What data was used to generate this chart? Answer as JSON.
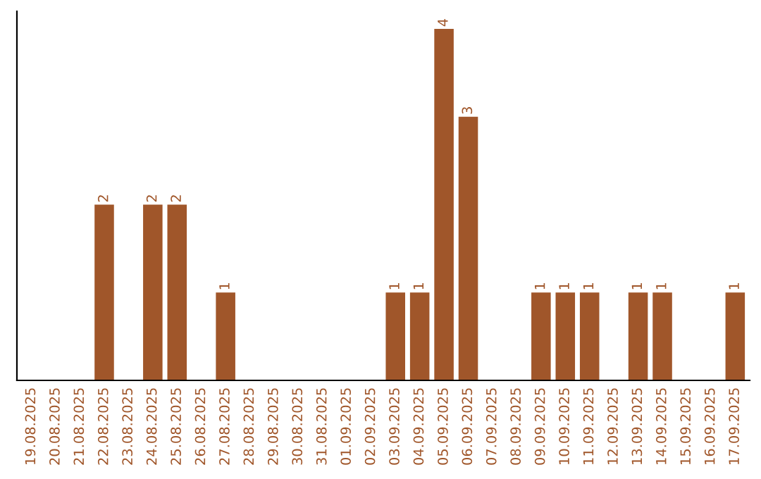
{
  "chart_data": {
    "type": "bar",
    "categories": [
      "19.08.2025",
      "20.08.2025",
      "21.08.2025",
      "22.08.2025",
      "23.08.2025",
      "24.08.2025",
      "25.08.2025",
      "26.08.2025",
      "27.08.2025",
      "28.08.2025",
      "29.08.2025",
      "30.08.2025",
      "31.08.2025",
      "01.09.2025",
      "02.09.2025",
      "03.09.2025",
      "04.09.2025",
      "05.09.2025",
      "06.09.2025",
      "07.09.2025",
      "08.09.2025",
      "09.09.2025",
      "10.09.2025",
      "11.09.2025",
      "12.09.2025",
      "13.09.2025",
      "14.09.2025",
      "15.09.2025",
      "16.09.2025",
      "17.09.2025"
    ],
    "values": [
      0,
      0,
      0,
      2,
      0,
      2,
      2,
      0,
      1,
      0,
      0,
      0,
      0,
      0,
      0,
      1,
      1,
      4,
      3,
      0,
      0,
      1,
      1,
      1,
      0,
      1,
      1,
      0,
      0,
      1
    ],
    "value_labels": [
      null,
      null,
      null,
      "2",
      null,
      "2",
      "2",
      null,
      "1",
      null,
      null,
      null,
      null,
      null,
      null,
      "1",
      "1",
      "4",
      "3",
      null,
      null,
      "1",
      "1",
      "1",
      null,
      "1",
      "1",
      null,
      null,
      "1"
    ],
    "color": "#a0562a",
    "ylim": [
      0,
      4.2
    ],
    "tick_labels": "x",
    "grid": false,
    "legend": false
  }
}
